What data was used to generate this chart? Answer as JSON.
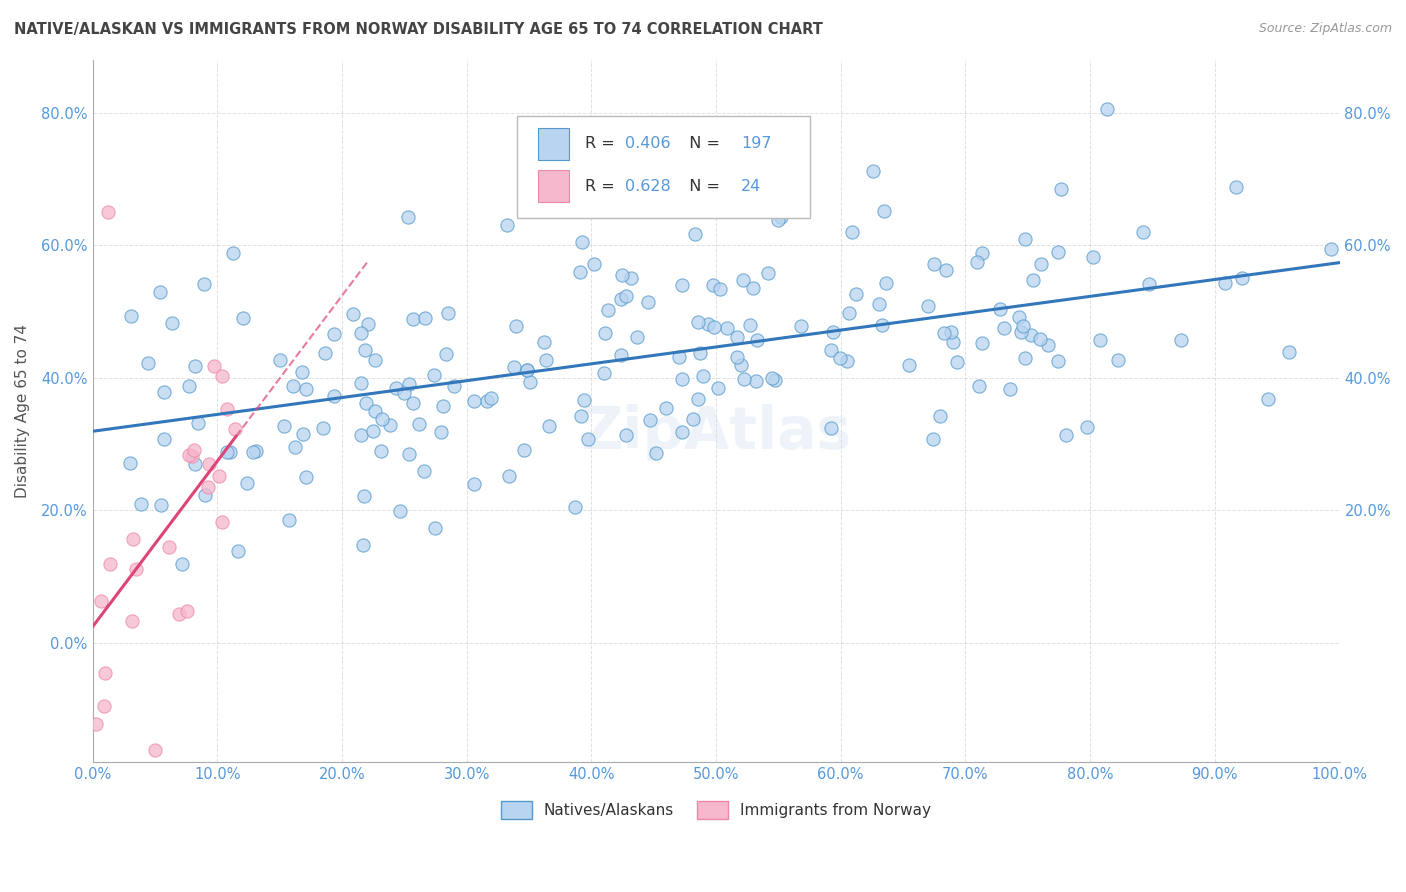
{
  "title": "NATIVE/ALASKAN VS IMMIGRANTS FROM NORWAY DISABILITY AGE 65 TO 74 CORRELATION CHART",
  "source": "Source: ZipAtlas.com",
  "ylabel": "Disability Age 65 to 74",
  "legend_label_1": "Natives/Alaskans",
  "legend_label_2": "Immigrants from Norway",
  "R1": 0.406,
  "N1": 197,
  "R2": 0.628,
  "N2": 24,
  "color1": "#b8d4f0",
  "color1_edge": "#5599cc",
  "color2": "#f5b8cc",
  "color2_edge": "#ee88aa",
  "line_color1": "#3377bb",
  "line_color2": "#dd4477",
  "background": "#ffffff",
  "grid_color": "#cccccc",
  "title_color": "#444444",
  "source_color": "#999999",
  "axis_label_color": "#555555",
  "tick_color": "#5599dd",
  "xlim": [
    0.0,
    1.0
  ],
  "ylim": [
    -0.18,
    0.88
  ]
}
